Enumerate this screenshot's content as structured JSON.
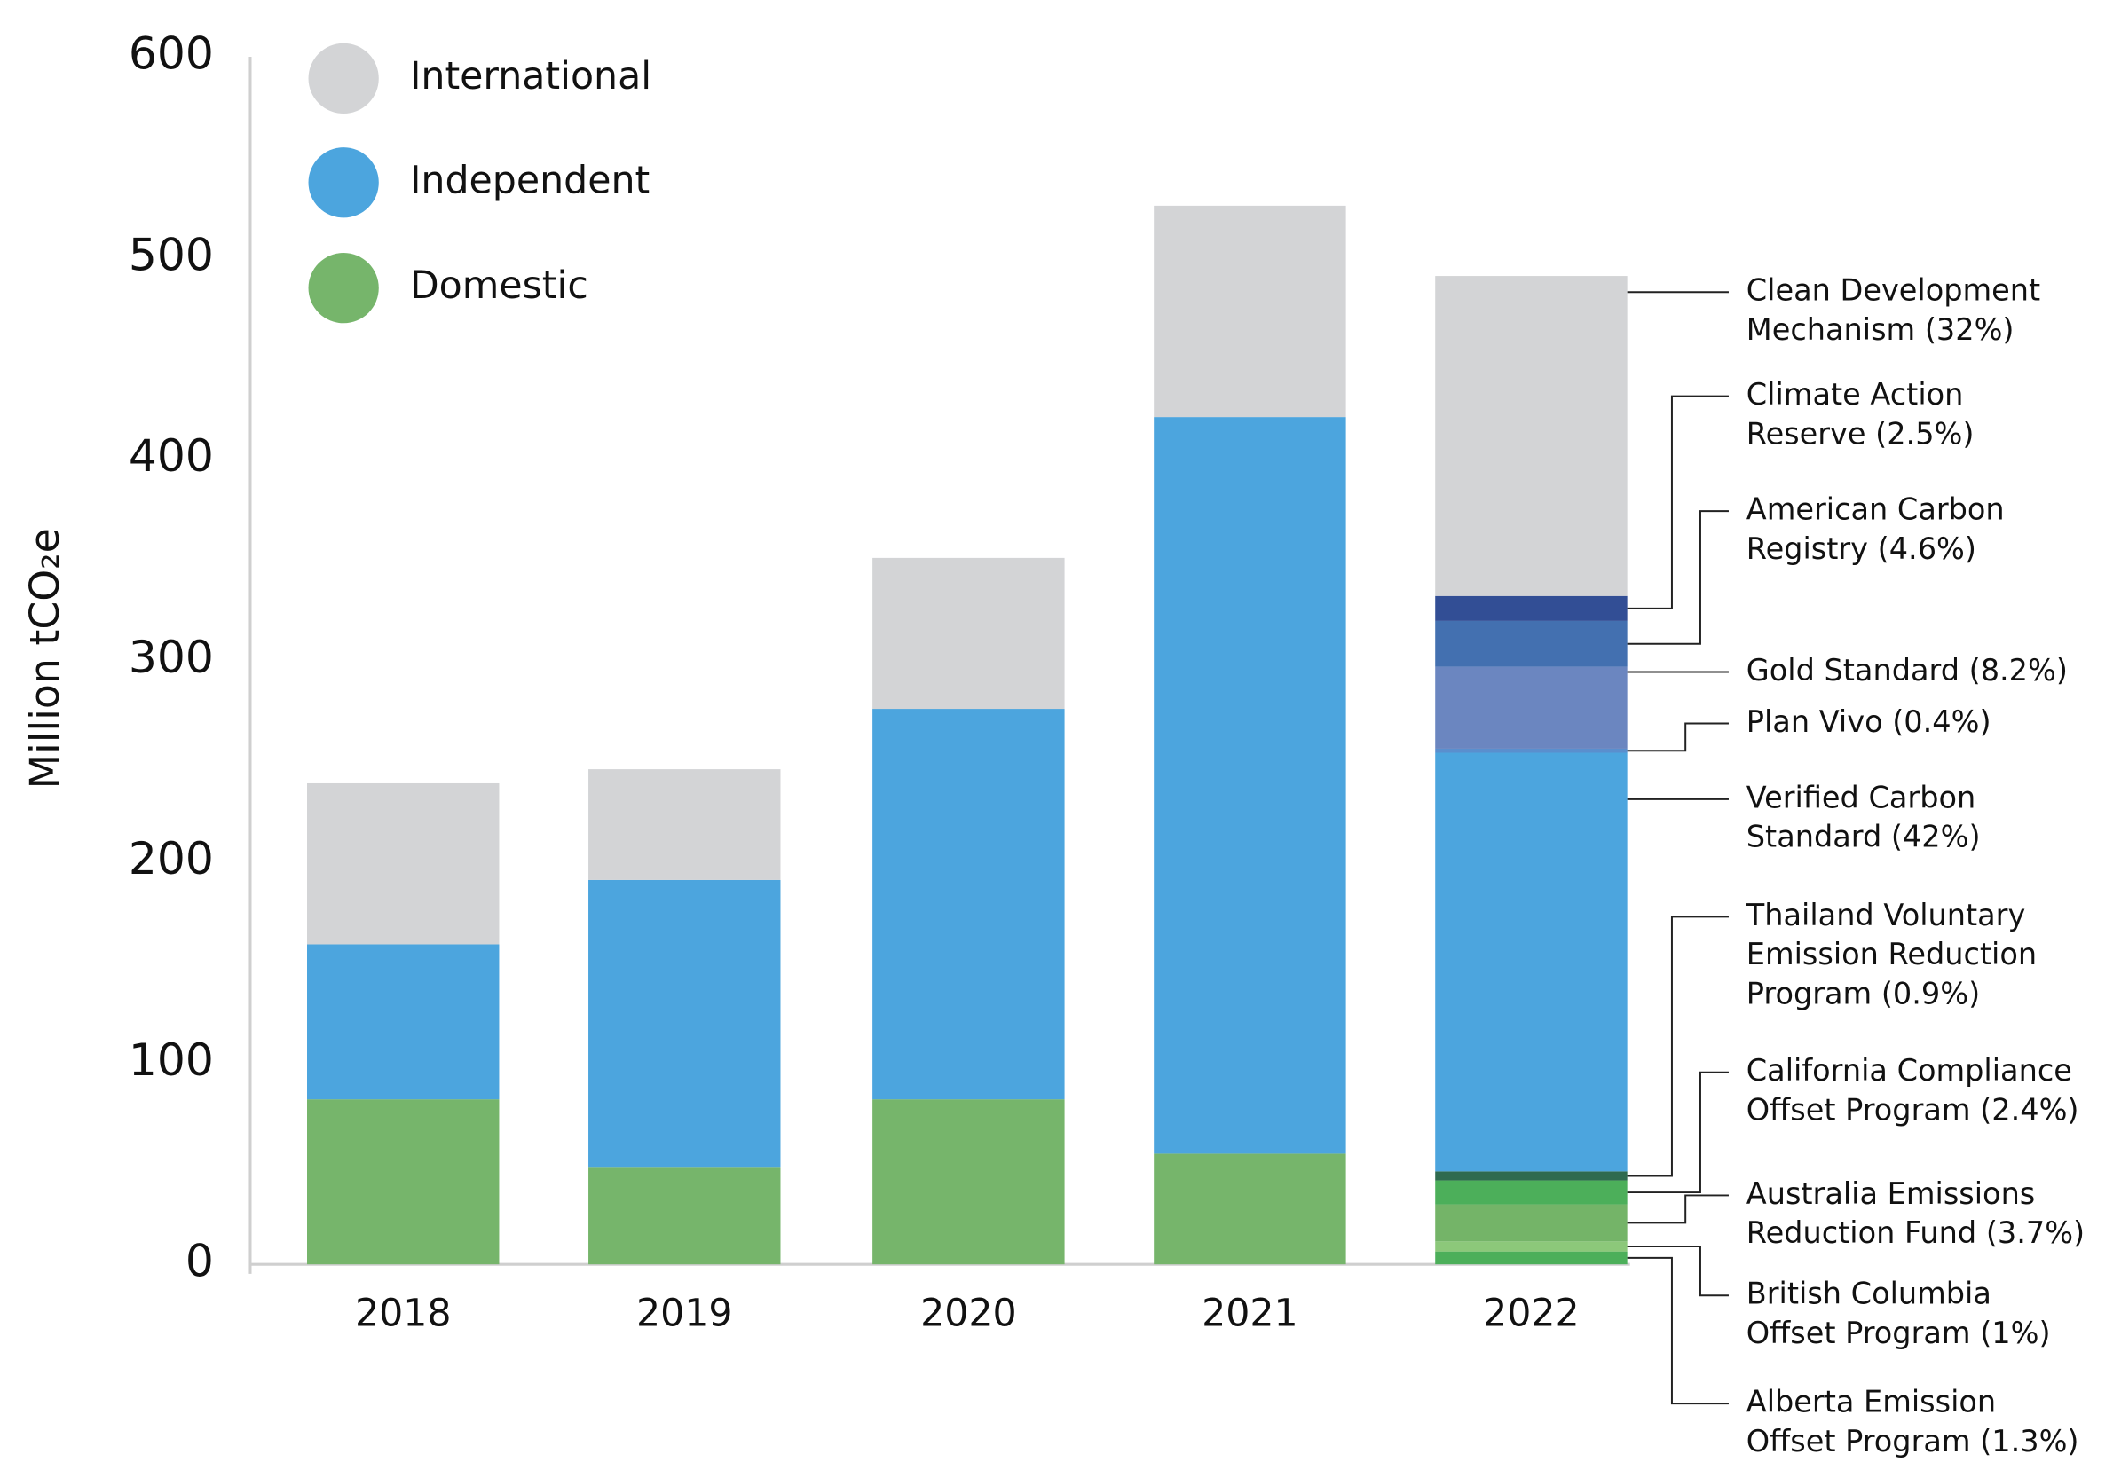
{
  "chart_data": {
    "type": "stacked_bar",
    "ylabel": "Million tCO₂e",
    "categories": [
      "2018",
      "2019",
      "2020",
      "2021",
      "2022"
    ],
    "ylim": [
      0,
      600
    ],
    "yticks": [
      0,
      100,
      200,
      300,
      400,
      500,
      600
    ],
    "series": [
      {
        "name": "Domestic",
        "color": "#76b56b",
        "values": [
          82,
          48,
          82,
          55,
          null
        ]
      },
      {
        "name": "Independent",
        "color": "#4ca5de",
        "values": [
          77,
          143,
          194,
          366,
          null
        ]
      },
      {
        "name": "International",
        "color": "#d3d4d6",
        "values": [
          80,
          55,
          75,
          105,
          null
        ]
      }
    ],
    "segments_2022": [
      {
        "name": [
          "Alberta Emission",
          "Offset Program (1.3%)"
        ],
        "color": "#4caf5a",
        "value": 6.4
      },
      {
        "name": [
          "British Columbia",
          "Offset Program (1%)"
        ],
        "color": "#8cc87a",
        "value": 5
      },
      {
        "name": [
          "Australia Emissions",
          "Reduction Fund (3.7%)"
        ],
        "color": "#74b468",
        "value": 18.4
      },
      {
        "name": [
          "California Compliance",
          "Offset Program (2.4%)"
        ],
        "color": "#4caf5a",
        "value": 11.9
      },
      {
        "name": [
          "Thailand Voluntary",
          "Emission Reduction",
          "Program (0.9%)"
        ],
        "color": "#2f6a4f",
        "value": 4.5
      },
      {
        "name": [
          "Verified Carbon",
          "Standard (42%)"
        ],
        "color": "#4ca5de",
        "value": 208
      },
      {
        "name": [
          "Plan Vivo (0.4%)"
        ],
        "color": "#5a8fce",
        "value": 2
      },
      {
        "name": [
          "Gold Standard (8.2%)"
        ],
        "color": "#6b86c0",
        "value": 40.7
      },
      {
        "name": [
          "American Carbon",
          "Registry (4.6%)"
        ],
        "color": "#4370b0",
        "value": 22.8
      },
      {
        "name": [
          "Climate Action",
          "Reserve (2.5%)"
        ],
        "color": "#324e95",
        "value": 12.4
      },
      {
        "name": [
          "Clean Development",
          "Mechanism (32%)"
        ],
        "color": "#d3d4d6",
        "value": 159
      }
    ]
  }
}
